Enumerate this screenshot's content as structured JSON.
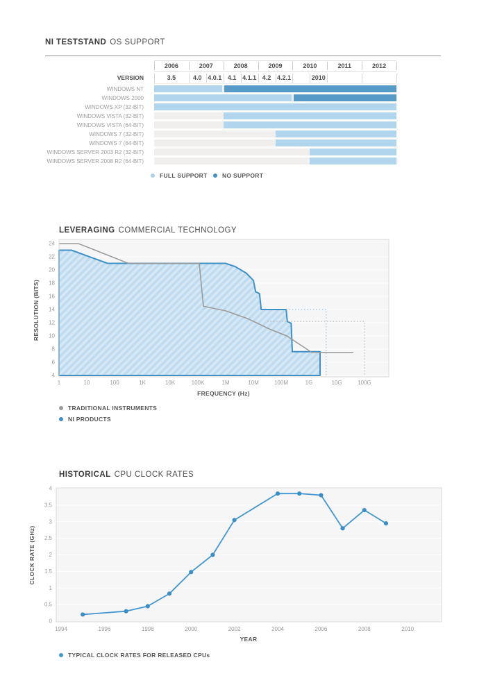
{
  "chart_data": [
    {
      "id": "ni-teststand-os-support",
      "type": "table",
      "title_bold": "NI TESTSTAND",
      "title_rest": "OS SUPPORT",
      "version_row_label": "VERSION",
      "years": [
        "2006",
        "2007",
        "2008",
        "2009",
        "2010",
        "2011",
        "2012"
      ],
      "versions": [
        {
          "label": "3.5",
          "start": 0,
          "end": 2
        },
        {
          "label": "4.0",
          "start": 2,
          "end": 3
        },
        {
          "label": "4.0.1",
          "start": 3,
          "end": 4
        },
        {
          "label": "4.1",
          "start": 4,
          "end": 5
        },
        {
          "label": "4.1.1",
          "start": 5,
          "end": 6
        },
        {
          "label": "4.2",
          "start": 6,
          "end": 7
        },
        {
          "label": "4.2.1",
          "start": 7,
          "end": 8
        },
        {
          "label": "2010",
          "start": 9,
          "end": 10
        }
      ],
      "rows": [
        {
          "label": "WINDOWS NT",
          "full": [
            0,
            4
          ],
          "no": [
            4,
            14
          ]
        },
        {
          "label": "WINDOWS 2000",
          "full": [
            0,
            8
          ],
          "no": [
            8,
            14
          ]
        },
        {
          "label": "WINDOWS XP (32-BIT)",
          "full": [
            0,
            14
          ]
        },
        {
          "label": "WINDOWS VISTA (32-BIT)",
          "full": [
            4,
            14
          ]
        },
        {
          "label": "WINDOWS VISTA (64-BIT)",
          "full": [
            4,
            14
          ]
        },
        {
          "label": "WINDOWS 7 (32-BIT)",
          "full": [
            7,
            14
          ]
        },
        {
          "label": "WINDOWS 7 (64-BIT)",
          "full": [
            7,
            14
          ]
        },
        {
          "label": "WINDOWS SERVER 2003 R2 (32-BIT)",
          "full": [
            9,
            14
          ]
        },
        {
          "label": "WINDOWS SERVER 2008 R2 (64-BIT)",
          "full": [
            9,
            14
          ]
        }
      ],
      "colors": {
        "full": "#b2d5ee",
        "no": "#569bc8",
        "none": "#f0efee"
      },
      "legend": [
        {
          "label": "FULL SUPPORT",
          "color": "#a9d2ee"
        },
        {
          "label": "NO SUPPORT",
          "color": "#4591c5"
        }
      ]
    },
    {
      "id": "leveraging-commercial-technology",
      "type": "area",
      "title_bold": "LEVERAGING",
      "title_rest": "COMMERCIAL TECHNOLOGY",
      "xlabel": "FREQUENCY (Hz)",
      "ylabel": "RESOLUTION (BITS)",
      "x_scale": "log",
      "x_ticks": [
        "1",
        "10",
        "100",
        "1K",
        "10K",
        "100K",
        "1M",
        "10M",
        "100M",
        "1G",
        "10G",
        "100G"
      ],
      "y_ticks": [
        4,
        6,
        8,
        10,
        12,
        14,
        16,
        18,
        20,
        22,
        24
      ],
      "ylim": [
        4,
        24
      ],
      "hatch_base": "#d7e8f5",
      "hatch_stripe": "#bedbf0",
      "series": [
        {
          "name": "TRADITIONAL INSTRUMENTS",
          "color": "#9b9b9b",
          "style": "line",
          "points": [
            [
              0,
              24
            ],
            [
              0.7,
              24
            ],
            [
              2.5,
              21
            ],
            [
              5.05,
              21
            ],
            [
              5.2,
              14.5
            ],
            [
              6,
              13.8
            ],
            [
              6.8,
              12.6
            ],
            [
              7.6,
              11
            ],
            [
              8.2,
              10
            ],
            [
              9.1,
              7.5
            ],
            [
              10.6,
              7.5
            ]
          ]
        },
        {
          "name": "NI PRODUCTS",
          "color": "#3e90c6",
          "style": "area",
          "points": [
            [
              0,
              23
            ],
            [
              0.45,
              23
            ],
            [
              1.75,
              21
            ],
            [
              6,
              21
            ],
            [
              6.35,
              20.5
            ],
            [
              6.75,
              19.5
            ],
            [
              7,
              18.4
            ],
            [
              7.08,
              16.7
            ],
            [
              7.22,
              16.4
            ],
            [
              7.28,
              14
            ],
            [
              8.18,
              14
            ],
            [
              8.22,
              12.2
            ],
            [
              8.36,
              11.9
            ],
            [
              8.4,
              7.6
            ],
            [
              9.4,
              7.6
            ],
            [
              9.4,
              4
            ]
          ]
        }
      ],
      "dotted": [
        {
          "name": "ni-products-projection",
          "color": "#8fc1e4",
          "points": [
            [
              8.18,
              14
            ],
            [
              9.62,
              14
            ],
            [
              9.62,
              4
            ]
          ]
        },
        {
          "name": "traditional-projection",
          "color": "#bbbbbb",
          "points": [
            [
              7.5,
              12.2
            ],
            [
              11,
              12.2
            ],
            [
              11,
              4
            ]
          ]
        }
      ],
      "legend_position": "bottom-left",
      "grid": "horizontal"
    },
    {
      "id": "historical-cpu-clock-rates",
      "type": "line",
      "title_bold": "HISTORICAL",
      "title_rest": "CPU CLOCK RATES",
      "xlabel": "YEAR",
      "ylabel": "CLOCK RATE (GHz)",
      "x_ticks": [
        1994,
        1996,
        1998,
        2000,
        2002,
        2004,
        2006,
        2008,
        2010
      ],
      "y_ticks": [
        0,
        0.5,
        1,
        1.5,
        2,
        2.5,
        3,
        3.5,
        4
      ],
      "xlim": [
        1994,
        2011.6
      ],
      "ylim": [
        0,
        4
      ],
      "series": [
        {
          "name": "TYPICAL CLOCK RATES FOR RELEASED CPUs",
          "color": "#4296cf",
          "x": [
            1995,
            1997,
            1998,
            1999,
            2000,
            2001,
            2002,
            2004,
            2005,
            2006,
            2007,
            2008,
            2009
          ],
          "y": [
            0.2,
            0.3,
            0.45,
            0.83,
            1.48,
            2.0,
            3.05,
            3.85,
            3.85,
            3.8,
            2.8,
            3.35,
            2.95
          ]
        }
      ],
      "legend_position": "bottom-left",
      "grid": "horizontal"
    }
  ]
}
